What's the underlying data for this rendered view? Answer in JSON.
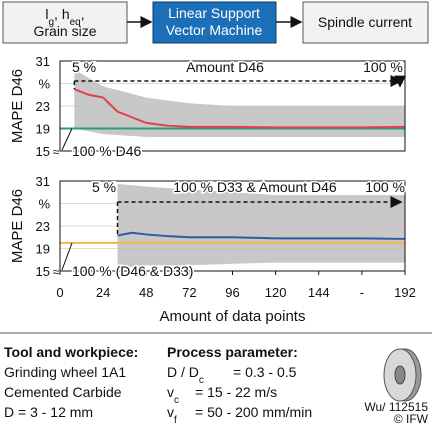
{
  "flow": {
    "input_parts": [
      {
        "text": "l"
      },
      {
        "text": "g",
        "sub": true
      },
      {
        "text": ", h"
      },
      {
        "text": "eq",
        "sub": true
      },
      {
        "text": ","
      }
    ],
    "input_line2": "Grain size",
    "model": [
      "Linear Support",
      "Vector Machine"
    ],
    "output": "Spindle current"
  },
  "chart_data": [
    {
      "type": "line",
      "ylabel": "MAPE D46",
      "xlim": [
        0,
        192
      ],
      "ylim": [
        15,
        31
      ],
      "yticks": [
        15,
        19,
        23,
        {
          "value": 27,
          "label": "%"
        },
        31
      ],
      "grid": true,
      "band": {
        "color": "#c8c8c8",
        "x": [
          8,
          24,
          48,
          72,
          96,
          120,
          144,
          168,
          192
        ],
        "upper": [
          29.5,
          26.5,
          24.5,
          23.5,
          23,
          23,
          23,
          23,
          23
        ],
        "lower": [
          19,
          18,
          17.5,
          17.5,
          17.5,
          17.5,
          17.5,
          17.5,
          17.5
        ]
      },
      "series": [
        {
          "color": "#2e9b73",
          "x": [
            0,
            192
          ],
          "values": [
            19,
            19
          ]
        },
        {
          "color": "#e2404d",
          "x": [
            8,
            16,
            24,
            32,
            40,
            48,
            60,
            72,
            96,
            120,
            144,
            168,
            192
          ],
          "values": [
            26,
            25,
            24.5,
            22,
            21,
            20,
            19.5,
            19.3,
            19.3,
            19.2,
            19.2,
            19.2,
            19.3
          ]
        }
      ],
      "annotations": [
        "5 %",
        "Amount D46",
        "100 %",
        "100 % D46"
      ]
    },
    {
      "type": "line",
      "ylabel": "MAPE D46",
      "xlabel": "Amount of data points",
      "xlim": [
        0,
        192
      ],
      "ylim": [
        15,
        31
      ],
      "yticks": [
        15,
        19,
        23,
        {
          "value": 27,
          "label": "%"
        },
        31
      ],
      "xticks": [
        0,
        24,
        48,
        72,
        96,
        120,
        144,
        {
          "value": 168,
          "label": "-"
        },
        192
      ],
      "grid": true,
      "band": {
        "color": "#c8c8c8",
        "x": [
          32,
          48,
          72,
          96,
          120,
          144,
          168,
          192
        ],
        "upper": [
          30.5,
          30,
          29.5,
          29,
          28.5,
          28.5,
          28.5,
          28.5
        ],
        "lower": [
          15.5,
          16,
          16,
          16.3,
          16.5,
          16.5,
          16.5,
          16.5
        ]
      },
      "series": [
        {
          "color": "#f5b84a",
          "x": [
            0,
            192
          ],
          "values": [
            20,
            20
          ]
        },
        {
          "color": "#2c5ea0",
          "x": [
            32,
            40,
            48,
            60,
            72,
            96,
            120,
            144,
            168,
            192
          ],
          "values": [
            21.3,
            21.8,
            21.5,
            21.2,
            21,
            21,
            20.8,
            20.8,
            20.8,
            20.7
          ]
        }
      ],
      "annotations": [
        "5 %",
        "100 % D33 & Amount D46",
        "100 %",
        "100 % (D46 & D33)"
      ]
    }
  ],
  "tool": {
    "title": "Tool and workpiece:",
    "lines": [
      "Grinding wheel 1A1",
      "Cemented Carbide",
      "D = 3 - 12 mm"
    ]
  },
  "process": {
    "title": "Process parameter:",
    "rows": [
      {
        "symbol": [
          {
            "text": "D / D"
          },
          {
            "text": "c",
            "sub": true
          }
        ],
        "value": "= 0.3 - 0.5"
      },
      {
        "symbol": [
          {
            "text": "v"
          },
          {
            "text": "c",
            "sub": true
          }
        ],
        "value": "= 15 - 22 m/s"
      },
      {
        "symbol": [
          {
            "text": "v"
          },
          {
            "text": "f",
            "sub": true
          }
        ],
        "value": "= 50 - 200 mm/min"
      }
    ]
  },
  "footer": {
    "code": "Wu/ 112515",
    "copyright": "© IFW"
  }
}
